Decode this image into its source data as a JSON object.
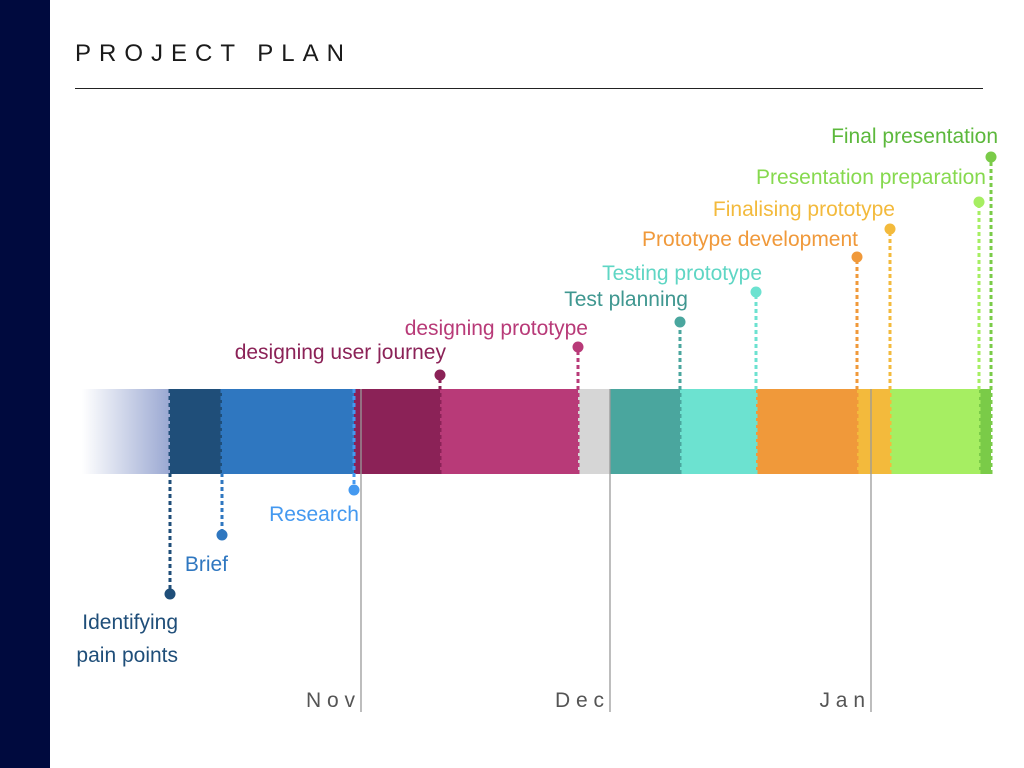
{
  "slide": {
    "title": "PROJECT PLAN",
    "sidebar_color": "#000a3e"
  },
  "months": [
    {
      "label": "N o v"
    },
    {
      "label": "D e c"
    },
    {
      "label": "J a n"
    }
  ],
  "tasks": [
    {
      "label": "Identifying pain points",
      "lines": [
        "Identifying",
        "pain points"
      ],
      "color": "#1f4e79",
      "text_color": "#1f4e79",
      "side": "below"
    },
    {
      "label": "Brief",
      "lines": [
        "Brief"
      ],
      "color": "#2f77c0",
      "text_color": "#2f77c0",
      "side": "below"
    },
    {
      "label": "Research",
      "lines": [
        "Research"
      ],
      "color": "#4499f0",
      "text_color": "#4499f0",
      "side": "below"
    },
    {
      "label": "designing user journey",
      "lines": [
        "designing user journey"
      ],
      "color": "#8b2257",
      "text_color": "#8b2257",
      "side": "above"
    },
    {
      "label": "designing prototype",
      "lines": [
        "designing prototype"
      ],
      "color": "#b83a78",
      "text_color": "#b83a78",
      "side": "above"
    },
    {
      "label": "Test planning",
      "lines": [
        "Test planning"
      ],
      "color": "#4aa69e",
      "text_color": "#3f9790",
      "side": "above"
    },
    {
      "label": "Testing prototype",
      "lines": [
        "Testing prototype"
      ],
      "color": "#6ce2d0",
      "text_color": "#5fd6c4",
      "side": "above"
    },
    {
      "label": "Prototype development",
      "lines": [
        "Prototype development"
      ],
      "color": "#f0993a",
      "text_color": "#f0993a",
      "side": "above"
    },
    {
      "label": "Finalising prototype",
      "lines": [
        "Finalising prototype"
      ],
      "color": "#f3ba3c",
      "text_color": "#f3ba3c",
      "side": "above"
    },
    {
      "label": "Presentation preparation",
      "lines": [
        "Presentation preparation"
      ],
      "color": "#a6ee62",
      "text_color": "#86d94e",
      "side": "above"
    },
    {
      "label": "Final presentation",
      "lines": [
        "Final presentation"
      ],
      "color": "#7acb48",
      "text_color": "#5cb83c",
      "side": "above"
    }
  ],
  "gap_color": "#d6d6d6",
  "fade_color": "#9aa8d2"
}
